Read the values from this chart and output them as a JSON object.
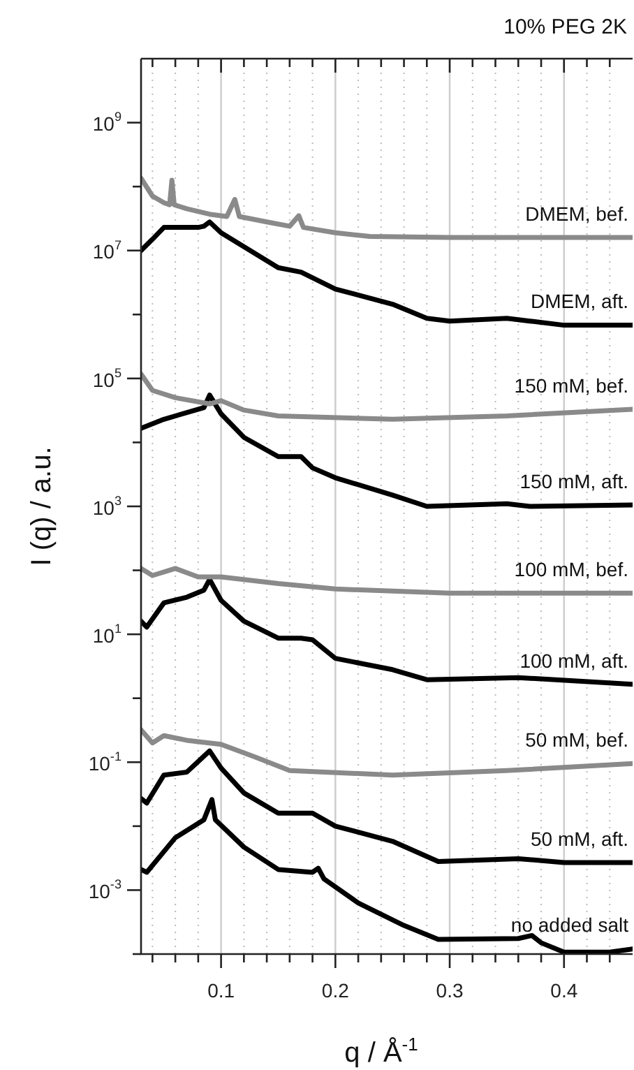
{
  "chart_data": {
    "type": "line",
    "title": "10% PEG 2K",
    "xlabel": "q / Å$^{-1}$",
    "ylabel": "I (q) / a.u.",
    "log": "y",
    "grid": "x",
    "legend": false,
    "marker": "none",
    "line_style": "solid",
    "xlim": [
      0.03,
      0.46
    ],
    "xticks": [
      {
        "value": 0.04,
        "label": null
      },
      {
        "value": 0.06,
        "label": null
      },
      {
        "value": 0.08,
        "label": null
      },
      0.1,
      {
        "value": 0.12,
        "label": null
      },
      {
        "value": 0.14,
        "label": null
      },
      {
        "value": 0.16,
        "label": null
      },
      {
        "value": 0.18,
        "label": null
      },
      0.2,
      {
        "value": 0.22,
        "label": null
      },
      {
        "value": 0.24,
        "label": null
      },
      {
        "value": 0.26,
        "label": null
      },
      {
        "value": 0.28,
        "label": null
      },
      0.3,
      {
        "value": 0.32,
        "label": null
      },
      {
        "value": 0.34,
        "label": null
      },
      {
        "value": 0.36,
        "label": null
      },
      {
        "value": 0.38,
        "label": null
      },
      0.4,
      {
        "value": 0.42,
        "label": null
      },
      {
        "value": 0.44,
        "label": null
      }
    ],
    "ylim": [
      0.0001,
      10000000000
    ],
    "yticks": [
      {
        "value": 0.0001,
        "label": null
      },
      {
        "value": 0.001,
        "label": "10$^{-3}$"
      },
      {
        "value": 0.01,
        "label": null
      },
      {
        "value": 0.1,
        "label": "10$^{-1}$"
      },
      {
        "value": 1,
        "label": null
      },
      {
        "value": 10,
        "label": "10$^{1}$"
      },
      {
        "value": 100,
        "label": null
      },
      {
        "value": 1000,
        "label": "10$^{3}$"
      },
      {
        "value": 10000,
        "label": null
      },
      {
        "value": 100000,
        "label": "10$^{5}$"
      },
      {
        "value": 1000000,
        "label": null
      },
      {
        "value": 10000000,
        "label": "10$^{7}$"
      },
      {
        "value": 100000000,
        "label": null
      },
      {
        "value": 1000000000,
        "label": "10$^{9}$"
      }
    ],
    "series": [
      {
        "name": "DMEM, bef.",
        "color": "#8a8a8a",
        "x": [
          0.03,
          0.04,
          0.05,
          0.055,
          0.057,
          0.059,
          0.07,
          0.09,
          0.105,
          0.112,
          0.116,
          0.14,
          0.16,
          0.168,
          0.172,
          0.2,
          0.23,
          0.3,
          0.4,
          0.46
        ],
        "values": [
          135000000,
          71000000,
          56000000,
          52000000,
          126000000,
          52000000,
          45000000,
          37000000,
          34000000,
          63000000,
          34000000,
          28000000,
          24000000,
          35000000,
          23000000,
          19000000,
          16600000,
          16000000,
          16000000,
          16000000
        ]
      },
      {
        "name": "DMEM, aft.",
        "color": "#000000",
        "x": [
          0.03,
          0.04,
          0.05,
          0.08,
          0.085,
          0.09,
          0.1,
          0.15,
          0.17,
          0.2,
          0.25,
          0.28,
          0.3,
          0.35,
          0.37,
          0.4,
          0.46
        ],
        "values": [
          10000000,
          15000000,
          23000000,
          23000000,
          24000000,
          28000000,
          19000000,
          5400000,
          4600000,
          2500000,
          1450000,
          870000,
          790000,
          870000,
          790000,
          680000,
          680000
        ]
      },
      {
        "name": "150 mM, bef.",
        "color": "#8a8a8a",
        "x": [
          0.03,
          0.04,
          0.06,
          0.09,
          0.1,
          0.12,
          0.15,
          0.25,
          0.35,
          0.46
        ],
        "values": [
          117000,
          65000,
          50000,
          40000,
          45000,
          32000,
          26000,
          23000,
          26000,
          33000
        ]
      },
      {
        "name": "150 mM, aft.",
        "color": "#000000",
        "x": [
          0.03,
          0.05,
          0.085,
          0.09,
          0.1,
          0.12,
          0.15,
          0.17,
          0.18,
          0.2,
          0.25,
          0.28,
          0.35,
          0.37,
          0.46
        ],
        "values": [
          16600,
          23000,
          35000,
          55000,
          28000,
          12000,
          6000,
          6000,
          4000,
          2800,
          1500,
          1000,
          1100,
          1000,
          1050
        ]
      },
      {
        "name": "100 mM, bef.",
        "color": "#8a8a8a",
        "x": [
          0.03,
          0.04,
          0.06,
          0.08,
          0.1,
          0.15,
          0.2,
          0.3,
          0.46
        ],
        "values": [
          107,
          83,
          107,
          79,
          79,
          62,
          51,
          44,
          44
        ]
      },
      {
        "name": "100 mM, aft.",
        "color": "#000000",
        "x": [
          0.03,
          0.035,
          0.05,
          0.07,
          0.085,
          0.09,
          0.1,
          0.12,
          0.15,
          0.17,
          0.18,
          0.2,
          0.25,
          0.28,
          0.36,
          0.46
        ],
        "values": [
          16,
          13,
          31,
          38,
          49,
          72,
          34,
          16,
          8.7,
          8.7,
          8.2,
          4.2,
          2.8,
          1.95,
          2.1,
          1.65
        ]
      },
      {
        "name": "50 mM, bef.",
        "color": "#8a8a8a",
        "x": [
          0.03,
          0.04,
          0.05,
          0.07,
          0.1,
          0.13,
          0.16,
          0.25,
          0.35,
          0.46
        ],
        "values": [
          0.32,
          0.2,
          0.26,
          0.22,
          0.19,
          0.12,
          0.074,
          0.063,
          0.074,
          0.095
        ]
      },
      {
        "name": "50 mM, aft.",
        "color": "#000000",
        "x": [
          0.03,
          0.035,
          0.05,
          0.07,
          0.09,
          0.1,
          0.12,
          0.15,
          0.18,
          0.2,
          0.25,
          0.29,
          0.36,
          0.4,
          0.46
        ],
        "values": [
          0.027,
          0.023,
          0.063,
          0.07,
          0.15,
          0.081,
          0.033,
          0.016,
          0.016,
          0.01,
          0.0058,
          0.0028,
          0.0031,
          0.0027,
          0.0027
        ]
      },
      {
        "name": "no added salt",
        "color": "#000000",
        "x": [
          0.03,
          0.035,
          0.06,
          0.085,
          0.092,
          0.095,
          0.12,
          0.15,
          0.18,
          0.185,
          0.19,
          0.22,
          0.26,
          0.29,
          0.36,
          0.372,
          0.38,
          0.4,
          0.44,
          0.46
        ],
        "values": [
          0.0021,
          0.0019,
          0.0066,
          0.0126,
          0.026,
          0.0126,
          0.0047,
          0.0021,
          0.0019,
          0.0022,
          0.0015,
          0.00063,
          0.00028,
          0.00017,
          0.000175,
          0.000195,
          0.00015,
          0.000107,
          0.000107,
          0.00012
        ]
      }
    ]
  }
}
